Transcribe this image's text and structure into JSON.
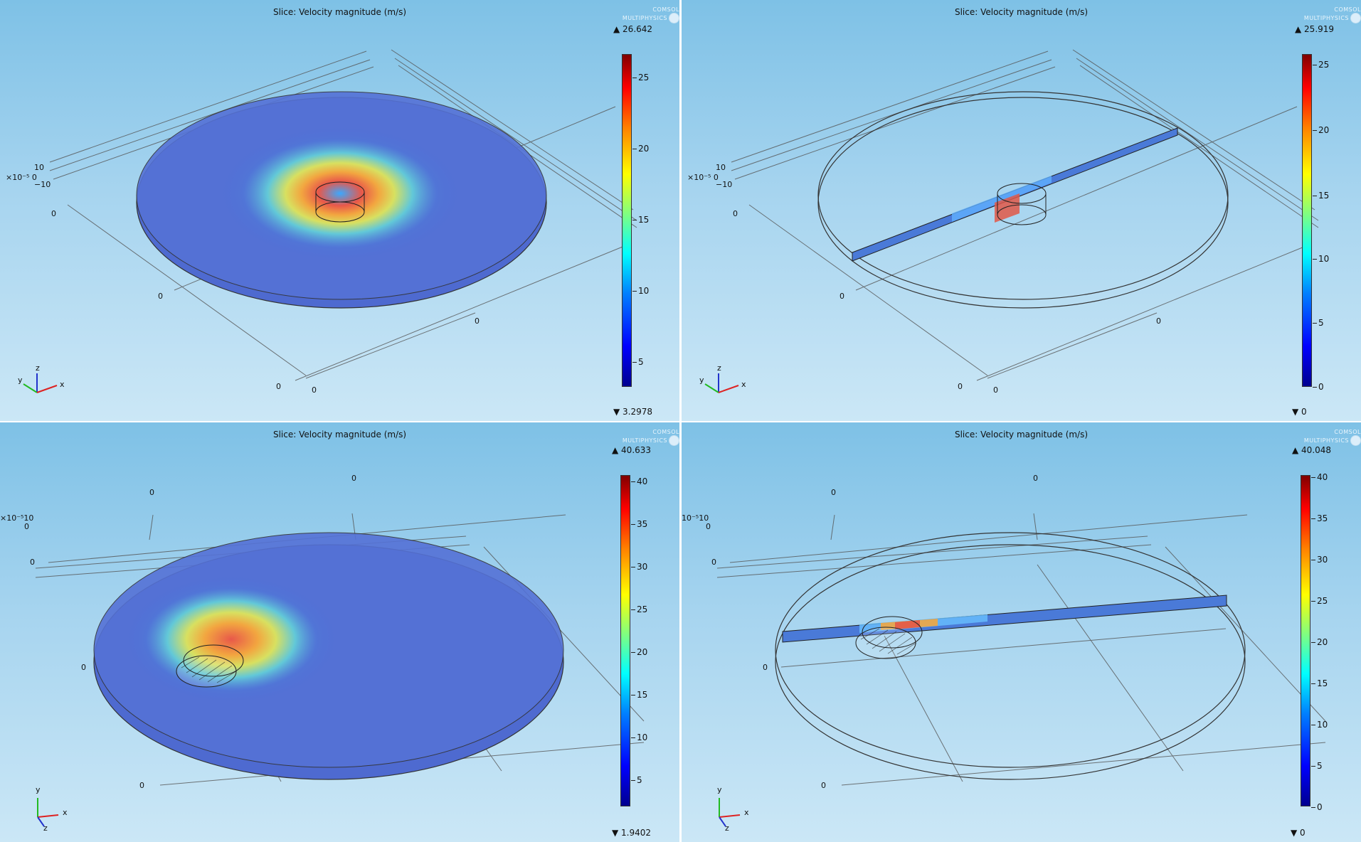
{
  "panels": [
    {
      "title": "Slice: Velocity magnitude (m/s)",
      "logo": [
        "COMSOL",
        "MULTIPHYSICS"
      ],
      "max_label": "▲ 26.642",
      "min_label": "▼ 3.2978",
      "colorbar_ticks": [
        "25",
        "20",
        "15",
        "10",
        "5"
      ],
      "axis_labels": [
        "10",
        "×10⁻⁵ 0",
        "−10",
        "0",
        "0",
        "0",
        "0",
        "0"
      ],
      "triad": [
        "z",
        "y",
        "x"
      ],
      "view": "top"
    },
    {
      "title": "Slice: Velocity magnitude (m/s)",
      "logo": [
        "COMSOL",
        "MULTIPHYSICS"
      ],
      "max_label": "▲ 25.919",
      "min_label": "▼ 0",
      "colorbar_ticks": [
        "25",
        "20",
        "15",
        "10",
        "5",
        "0"
      ],
      "axis_labels": [
        "10",
        "×10⁻⁵ 0",
        "−10",
        "0",
        "0",
        "0",
        "0",
        "0"
      ],
      "triad": [
        "z",
        "y",
        "x"
      ],
      "view": "top"
    },
    {
      "title": "Slice: Velocity magnitude (m/s)",
      "logo": [
        "COMSOL",
        "MULTIPHYSICS"
      ],
      "max_label": "▲ 40.633",
      "min_label": "▼ 1.9402",
      "colorbar_ticks": [
        "40",
        "35",
        "30",
        "25",
        "20",
        "15",
        "10",
        "5"
      ],
      "axis_labels": [
        "0",
        "0",
        "×10⁻⁵10",
        "0",
        "0",
        "0",
        "0"
      ],
      "triad": [
        "y",
        "x",
        "z"
      ],
      "view": "tilt"
    },
    {
      "title": "Slice: Velocity magnitude (m/s)",
      "logo": [
        "COMSOL",
        "MULTIPHYSICS"
      ],
      "max_label": "▲ 40.048",
      "min_label": "▼ 0",
      "colorbar_ticks": [
        "40",
        "35",
        "30",
        "25",
        "20",
        "15",
        "10",
        "5",
        "0"
      ],
      "axis_labels": [
        "0",
        "0",
        "10⁻⁵10",
        "0",
        "0",
        "0",
        "0"
      ],
      "triad": [
        "y",
        "x",
        "z"
      ],
      "view": "tilt"
    }
  ]
}
